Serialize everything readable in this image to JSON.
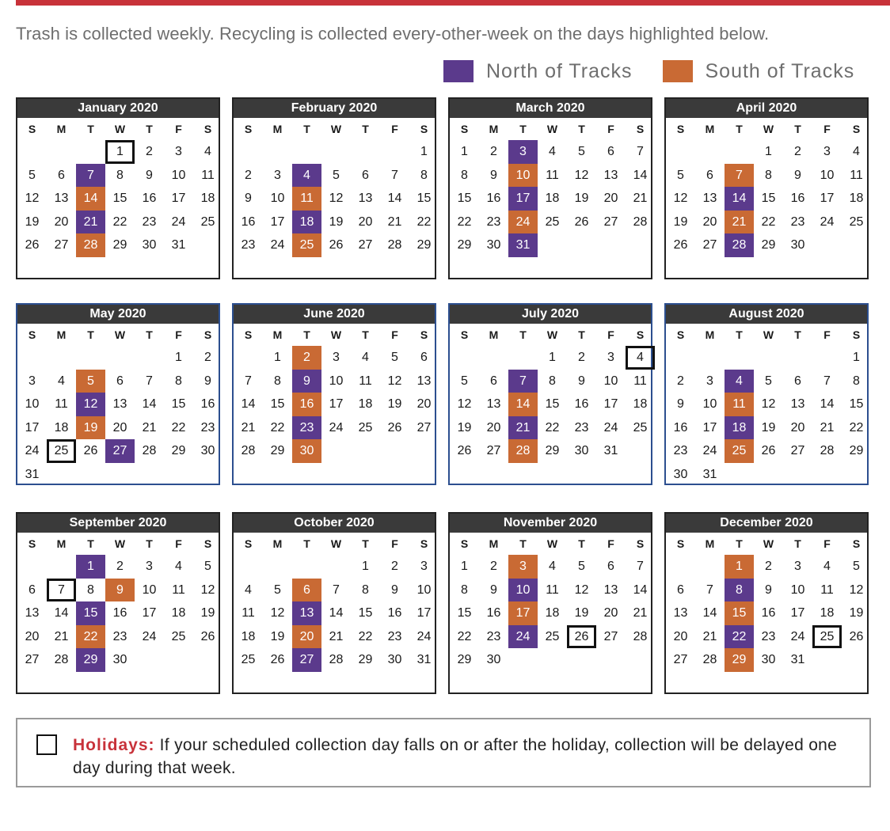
{
  "intro": "Trash is collected weekly. Recycling is collected every-other-week on the days highlighted below.",
  "legend": {
    "north": {
      "label": "North of Tracks",
      "color": "#5b3a8c"
    },
    "south": {
      "label": "South of Tracks",
      "color": "#c96a34"
    }
  },
  "weekdays": [
    "S",
    "M",
    "T",
    "W",
    "T",
    "F",
    "S"
  ],
  "months": [
    {
      "title": "January 2020",
      "start": 3,
      "days": 31,
      "north": [
        7,
        21
      ],
      "south": [
        14,
        28
      ],
      "holidays": [
        1
      ]
    },
    {
      "title": "February 2020",
      "start": 6,
      "days": 29,
      "north": [
        4,
        18
      ],
      "south": [
        11,
        25
      ],
      "holidays": []
    },
    {
      "title": "March 2020",
      "start": 0,
      "days": 31,
      "north": [
        3,
        17,
        31
      ],
      "south": [
        10,
        24
      ],
      "holidays": []
    },
    {
      "title": "April 2020",
      "start": 3,
      "days": 30,
      "north": [
        14,
        28
      ],
      "south": [
        7,
        21
      ],
      "holidays": []
    },
    {
      "title": "May 2020",
      "start": 5,
      "days": 31,
      "north": [
        12,
        27
      ],
      "south": [
        5,
        19
      ],
      "holidays": [
        25
      ]
    },
    {
      "title": "June 2020",
      "start": 1,
      "days": 30,
      "north": [
        9,
        23
      ],
      "south": [
        2,
        16,
        30
      ],
      "holidays": []
    },
    {
      "title": "July 2020",
      "start": 3,
      "days": 31,
      "north": [
        7,
        21
      ],
      "south": [
        14,
        28
      ],
      "holidays": [
        4
      ]
    },
    {
      "title": "August 2020",
      "start": 6,
      "days": 31,
      "north": [
        4,
        18
      ],
      "south": [
        11,
        25
      ],
      "holidays": []
    },
    {
      "title": "September 2020",
      "start": 2,
      "days": 30,
      "north": [
        1,
        15,
        29
      ],
      "south": [
        9,
        22
      ],
      "holidays": [
        7
      ]
    },
    {
      "title": "October 2020",
      "start": 4,
      "days": 31,
      "north": [
        13,
        27
      ],
      "south": [
        6,
        20
      ],
      "holidays": []
    },
    {
      "title": "November 2020",
      "start": 0,
      "days": 30,
      "north": [
        10,
        24
      ],
      "south": [
        3,
        17
      ],
      "holidays": [
        26
      ]
    },
    {
      "title": "December 2020",
      "start": 2,
      "days": 31,
      "north": [
        8,
        22
      ],
      "south": [
        1,
        15,
        29
      ],
      "holidays": [
        25
      ]
    }
  ],
  "holiday_note": {
    "label": "Holidays:",
    "text": "If your scheduled collection day falls on or after the holiday, collection will be delayed one day during that week."
  }
}
